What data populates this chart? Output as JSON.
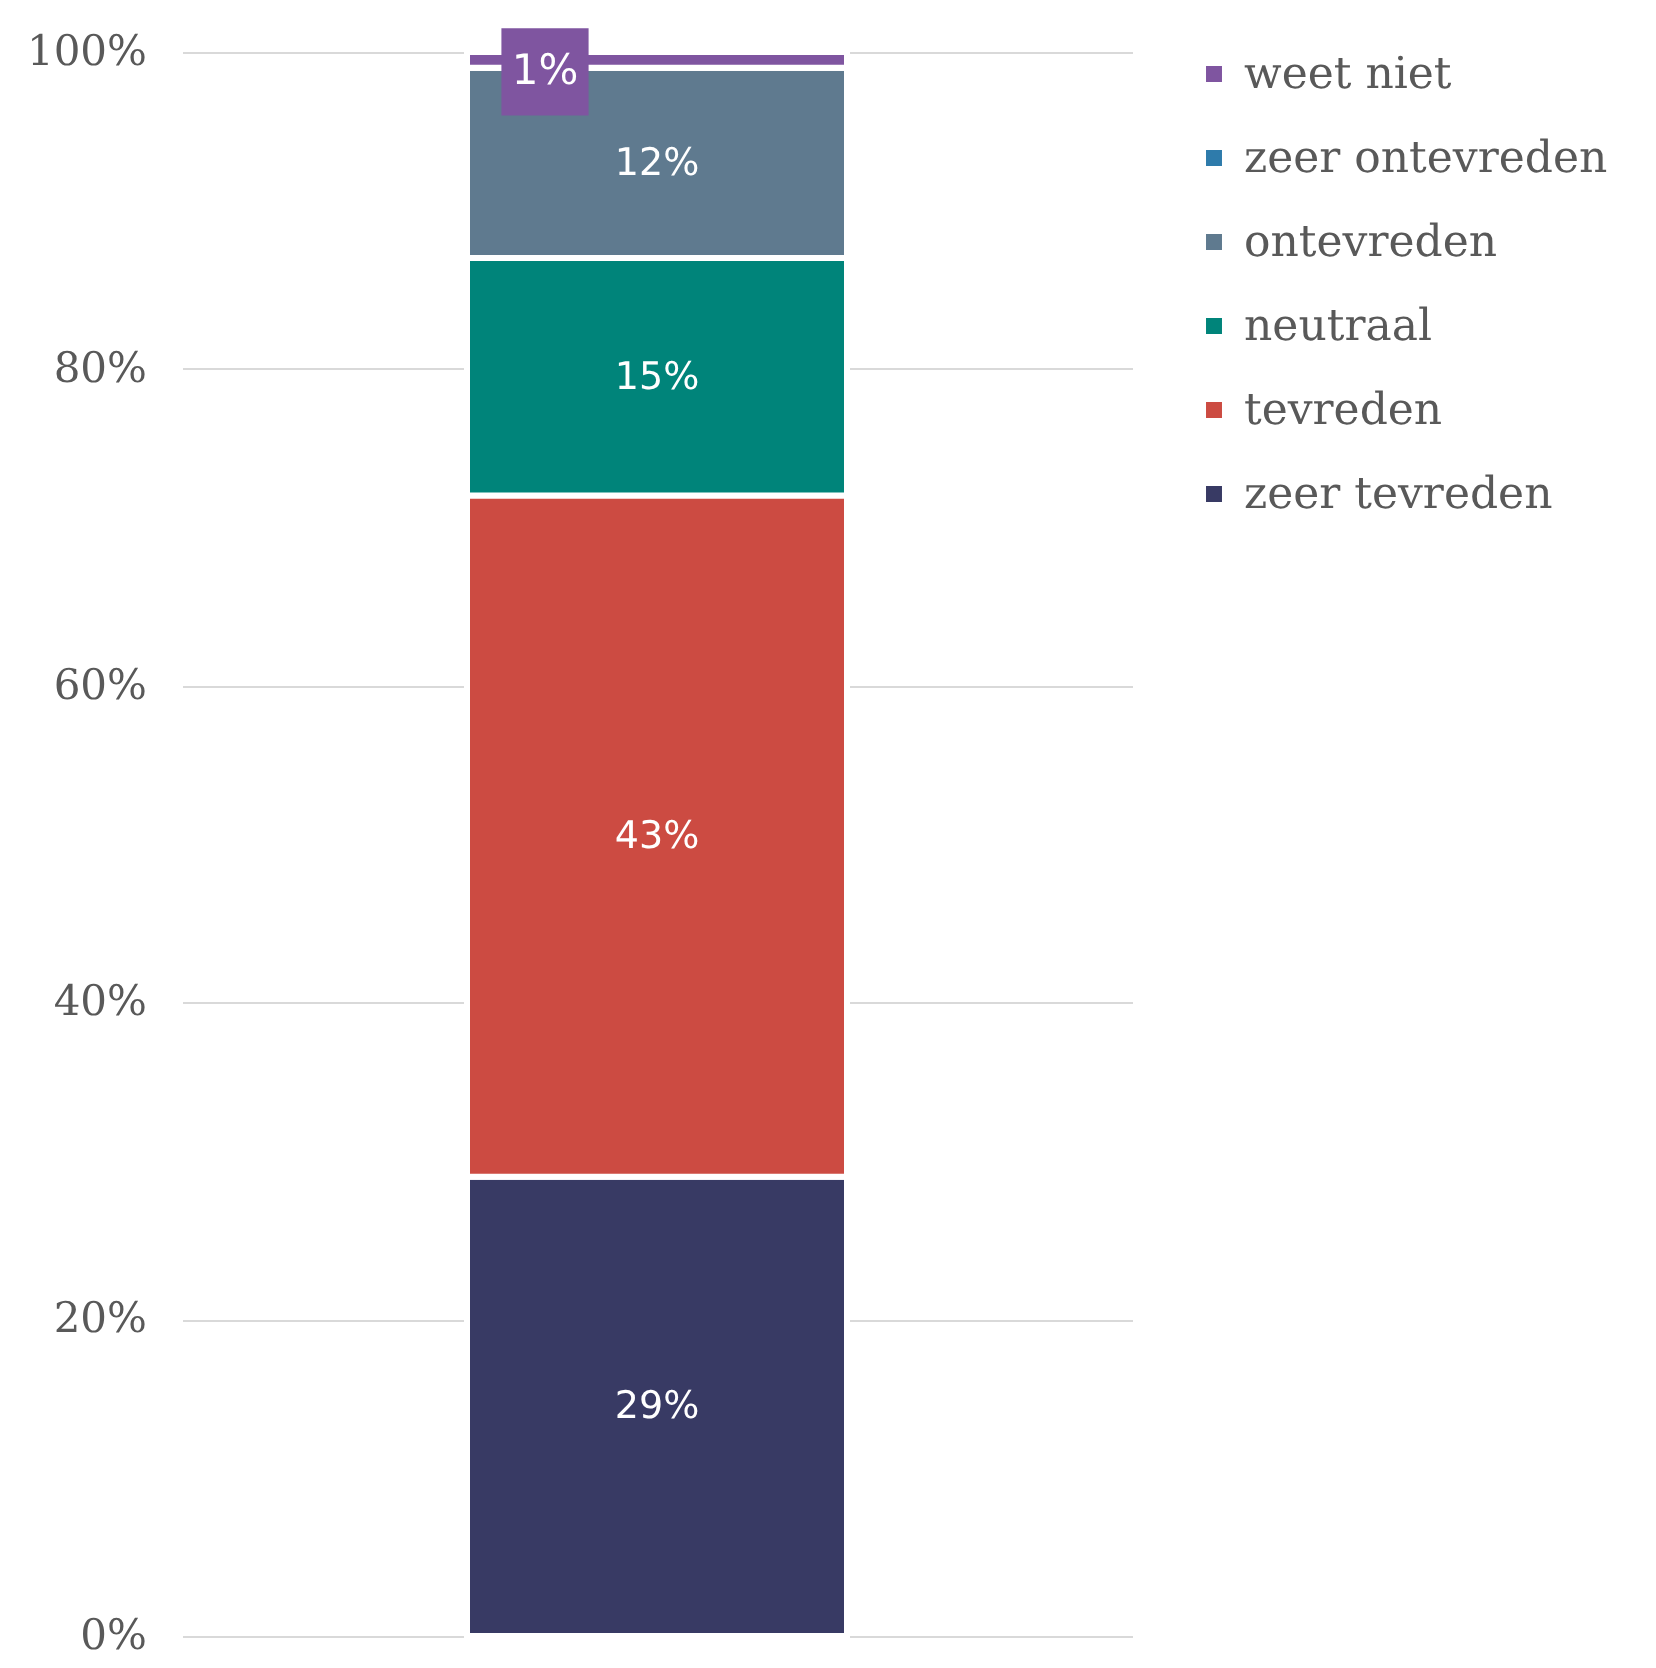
{
  "chart_data": {
    "type": "bar",
    "stacked": true,
    "categories": [
      null
    ],
    "series": [
      {
        "name": "zeer tevreden",
        "color": "#383a64",
        "values": [
          29
        ],
        "value_labels": [
          "29%"
        ]
      },
      {
        "name": "tevreden",
        "color": "#cc4b42",
        "values": [
          43
        ],
        "value_labels": [
          "43%"
        ]
      },
      {
        "name": "neutraal",
        "color": "#00847a",
        "values": [
          15
        ],
        "value_labels": [
          "15%"
        ]
      },
      {
        "name": "ontevreden",
        "color": "#5f7a8f",
        "values": [
          12
        ],
        "value_labels": [
          "12%"
        ]
      },
      {
        "name": "zeer ontevreden",
        "color": "#2e7bab",
        "values": [
          0
        ],
        "value_labels": [
          null
        ]
      },
      {
        "name": "weet niet",
        "color": "#7f55a0",
        "values": [
          1
        ],
        "value_labels": [
          "1%"
        ]
      }
    ],
    "ylim": [
      0,
      100
    ],
    "yticks": [
      {
        "value": 0,
        "label": "0%"
      },
      {
        "value": 20,
        "label": "20%"
      },
      {
        "value": 40,
        "label": "40%"
      },
      {
        "value": 60,
        "label": "60%"
      },
      {
        "value": 80,
        "label": "80%"
      },
      {
        "value": 100,
        "label": "100%"
      }
    ],
    "grid": "y",
    "legend": "right",
    "tick_labels": "y"
  }
}
